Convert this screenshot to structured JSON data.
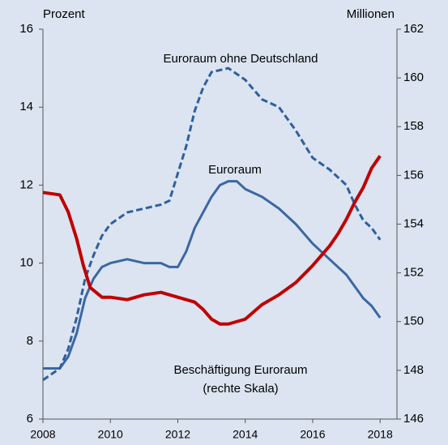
{
  "chart_data": {
    "type": "line",
    "ylabel": "Prozent",
    "y2label": "Millionen",
    "annotations": [
      "Euroraum ohne Deutschland",
      "Euroraum",
      "Beschäftigung Euroraum",
      "(rechte Skala)"
    ],
    "xlim": [
      2008,
      2018.5
    ],
    "xticks": [
      2008,
      2010,
      2012,
      2014,
      2016,
      2018
    ],
    "ylim": [
      6,
      16
    ],
    "yticks": [
      6,
      8,
      10,
      12,
      14,
      16
    ],
    "y2lim": [
      146,
      162
    ],
    "y2ticks": [
      146,
      148,
      150,
      152,
      154,
      156,
      158,
      160,
      162
    ],
    "series": [
      {
        "color": "#3b67a3",
        "dash": false,
        "axis": "y",
        "x": [
          2008.0,
          2008.5,
          2008.75,
          2009.0,
          2009.25,
          2009.5,
          2009.75,
          2010.0,
          2010.5,
          2011.0,
          2011.5,
          2011.75,
          2012.0,
          2012.25,
          2012.5,
          2012.75,
          2013.0,
          2013.25,
          2013.5,
          2013.75,
          2014.0,
          2014.5,
          2015.0,
          2015.5,
          2016.0,
          2016.5,
          2017.0,
          2017.5,
          2017.75,
          2018.0
        ],
        "values": [
          7.3,
          7.3,
          7.6,
          8.2,
          9.1,
          9.6,
          9.9,
          10.0,
          10.1,
          10.0,
          10.0,
          9.9,
          9.9,
          10.3,
          10.9,
          11.3,
          11.7,
          12.0,
          12.1,
          12.1,
          11.9,
          11.7,
          11.4,
          11.0,
          10.5,
          10.1,
          9.7,
          9.1,
          8.9,
          8.6
        ]
      },
      {
        "color": "#2f5f9e",
        "dash": true,
        "axis": "y",
        "x": [
          2008.0,
          2008.5,
          2008.75,
          2009.0,
          2009.25,
          2009.5,
          2009.75,
          2010.0,
          2010.5,
          2011.0,
          2011.5,
          2011.75,
          2012.0,
          2012.25,
          2012.5,
          2012.75,
          2013.0,
          2013.5,
          2014.0,
          2014.5,
          2015.0,
          2015.5,
          2016.0,
          2016.5,
          2017.0,
          2017.25,
          2017.5,
          2017.75,
          2018.0
        ],
        "values": [
          7.0,
          7.3,
          7.8,
          8.6,
          9.6,
          10.2,
          10.7,
          11.0,
          11.3,
          11.4,
          11.5,
          11.6,
          12.3,
          13.0,
          13.9,
          14.5,
          14.9,
          15.0,
          14.7,
          14.2,
          14.0,
          13.4,
          12.7,
          12.4,
          12.0,
          11.5,
          11.1,
          10.9,
          10.6
        ]
      },
      {
        "color": "#c00000",
        "dash": false,
        "axis": "y2",
        "x": [
          2008.0,
          2008.5,
          2008.75,
          2009.0,
          2009.2,
          2009.4,
          2009.75,
          2010.0,
          2010.5,
          2011.0,
          2011.5,
          2012.0,
          2012.5,
          2012.75,
          2013.0,
          2013.25,
          2013.5,
          2014.0,
          2014.25,
          2014.5,
          2015.0,
          2015.5,
          2016.0,
          2016.5,
          2016.75,
          2017.0,
          2017.25,
          2017.5,
          2017.75,
          2018.0
        ],
        "values": [
          155.3,
          155.2,
          154.5,
          153.4,
          152.3,
          151.4,
          151.0,
          151.0,
          150.9,
          151.1,
          151.2,
          151.0,
          150.8,
          150.5,
          150.1,
          149.9,
          149.9,
          150.1,
          150.4,
          150.7,
          151.1,
          151.6,
          152.3,
          153.1,
          153.6,
          154.2,
          154.9,
          155.5,
          156.3,
          156.8
        ]
      }
    ]
  }
}
